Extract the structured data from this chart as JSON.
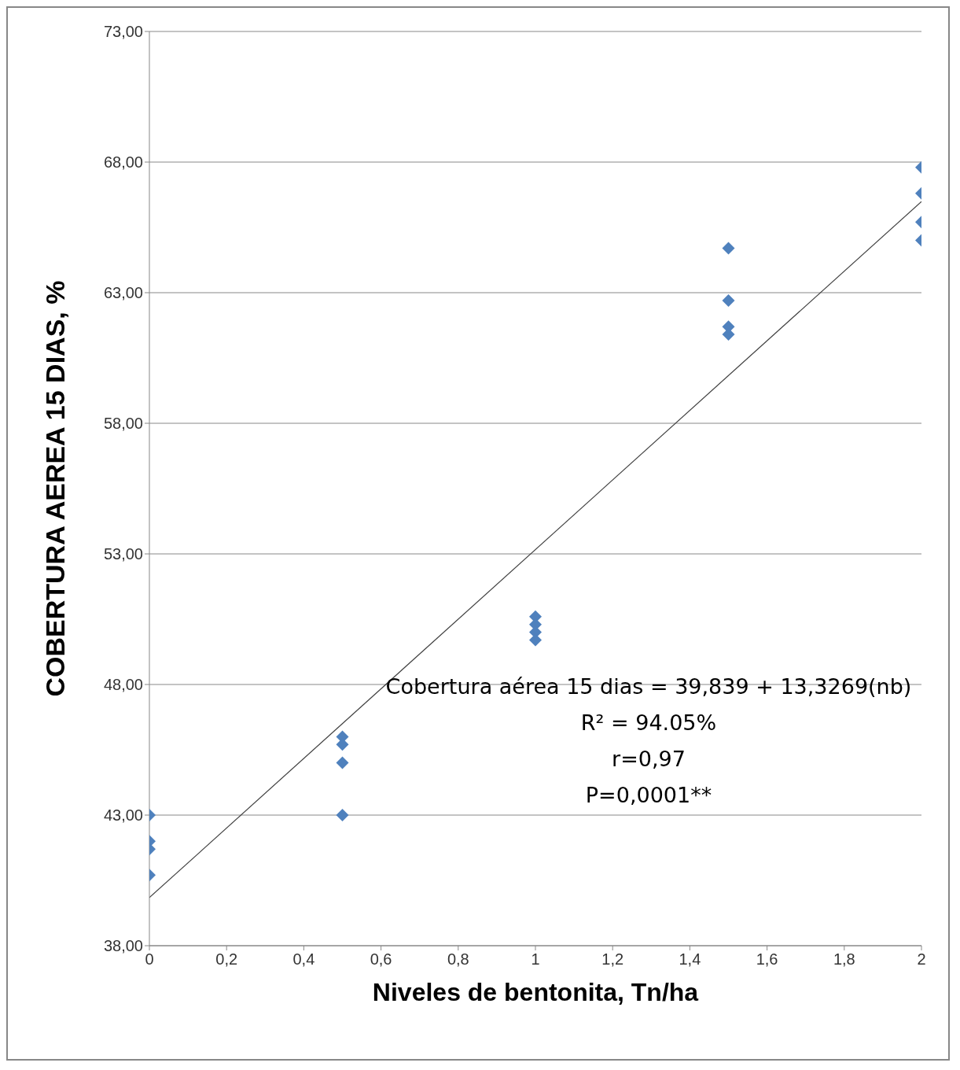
{
  "chart_data": {
    "type": "scatter",
    "xlabel": "Niveles de bentonita, Tn/ha",
    "ylabel": "COBERTURA AEREA 15 DIAS, %",
    "series": [
      {
        "type": "scatter",
        "color": "#4f81bd",
        "marker": "diamond",
        "x": [
          0,
          0,
          0,
          0,
          0.5,
          0.5,
          0.5,
          0.5,
          1,
          1,
          1,
          1,
          1.5,
          1.5,
          1.5,
          1.5,
          2,
          2,
          2,
          2
        ],
        "values": [
          43.0,
          42.0,
          41.7,
          40.7,
          46.0,
          45.7,
          45.0,
          43.0,
          50.6,
          50.3,
          50.0,
          49.7,
          64.7,
          62.7,
          61.7,
          61.4,
          67.8,
          66.8,
          65.7,
          65.0
        ]
      },
      {
        "type": "line",
        "color": "#404040",
        "marker": "none",
        "x": [
          0,
          2
        ],
        "values": [
          39.84,
          66.49
        ]
      }
    ],
    "annotations": [
      "Cobertura aérea 15 dias = 39,839 + 13,3269(nb)",
      "R² = 94.05%",
      "r=0,97",
      "P=0,0001**"
    ],
    "xlim": [
      0,
      2
    ],
    "xticks": [
      0,
      {
        "value": 0.2,
        "label": "0,2"
      },
      {
        "value": 0.4,
        "label": "0,4"
      },
      {
        "value": 0.6,
        "label": "0,6"
      },
      {
        "value": 0.8,
        "label": "0,8"
      },
      1,
      {
        "value": 1.2,
        "label": "1,2"
      },
      {
        "value": 1.4,
        "label": "1,4"
      },
      {
        "value": 1.6,
        "label": "1,6"
      },
      {
        "value": 1.8,
        "label": "1,8"
      },
      2
    ],
    "ylim": [
      38,
      73
    ],
    "yticks": [
      {
        "value": 38,
        "label": "38,00"
      },
      {
        "value": 43,
        "label": "43,00"
      },
      {
        "value": 48,
        "label": "48,00"
      },
      {
        "value": 53,
        "label": "53,00"
      },
      {
        "value": 58,
        "label": "58,00"
      },
      {
        "value": 63,
        "label": "63,00"
      },
      {
        "value": 68,
        "label": "68,00"
      },
      {
        "value": 73,
        "label": "73,00"
      }
    ],
    "grid": "y",
    "legend": false
  }
}
